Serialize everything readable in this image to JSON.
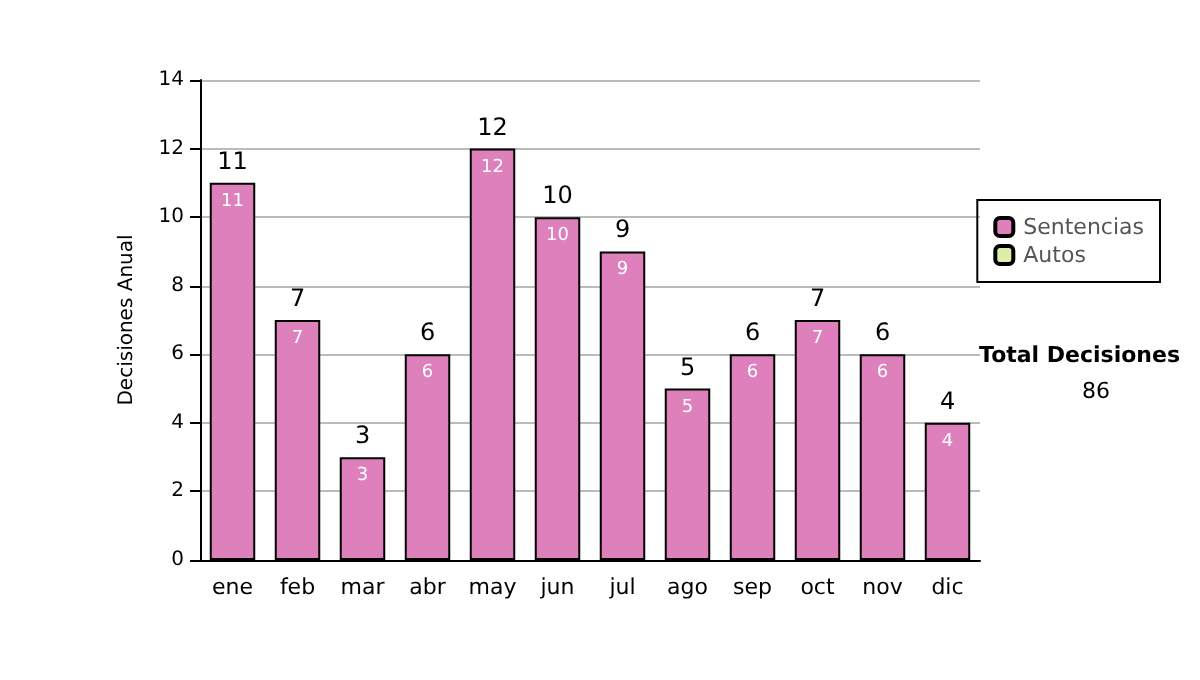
{
  "chart_data": {
    "type": "bar",
    "ylabel": "Decisiones Anual",
    "categories": [
      "ene",
      "feb",
      "mar",
      "abr",
      "may",
      "jun",
      "jul",
      "ago",
      "sep",
      "oct",
      "nov",
      "dic"
    ],
    "series": [
      {
        "name": "Sentencias",
        "color": "#dd80bb",
        "values": [
          11,
          7,
          3,
          6,
          12,
          10,
          9,
          5,
          6,
          7,
          6,
          4
        ]
      },
      {
        "name": "Autos",
        "color": "#ddeeaa",
        "values": [
          null,
          null,
          null,
          null,
          null,
          null,
          null,
          null,
          null,
          null,
          null,
          null
        ]
      }
    ],
    "stacked": true,
    "data_labels": true,
    "totals": [
      "11",
      "7",
      "3",
      "6",
      "12",
      "10",
      "9",
      "5",
      "6",
      "7",
      "6",
      "4"
    ],
    "ylim": [
      0,
      14
    ],
    "yticks": [
      0,
      2,
      4,
      6,
      8,
      10,
      12,
      14
    ],
    "grid": "y",
    "legend": "right",
    "annotations": [
      "Total Decisiones",
      "86"
    ]
  }
}
